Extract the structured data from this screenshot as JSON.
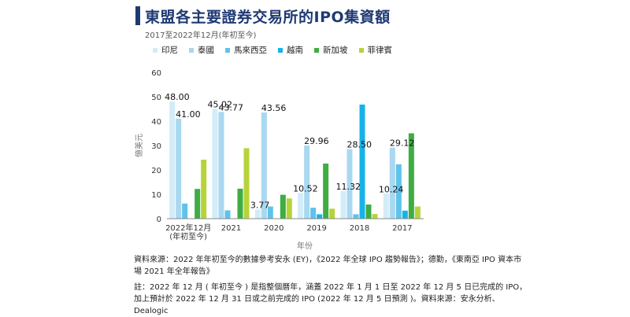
{
  "header": {
    "title": "東盟各主要證券交易所的IPO集資額",
    "subtitle": "2017至2022年12月(年初至今)"
  },
  "colors": {
    "accent": "#1f3a73",
    "series": [
      "#d2ecf8",
      "#a9d8f0",
      "#5ec3ea",
      "#17b3e8",
      "#3ead42",
      "#b6d33a"
    ]
  },
  "chart_data": {
    "type": "bar",
    "ylabel": "億美元",
    "xlabel": "年份",
    "ylim": [
      0,
      60
    ],
    "yticks": [
      0,
      10,
      20,
      30,
      40,
      50,
      60
    ],
    "grid": false,
    "legend_position": "top",
    "categories": [
      [
        "2022年12月",
        "(年初至今)"
      ],
      [
        "2021"
      ],
      [
        "2020"
      ],
      [
        "2019"
      ],
      [
        "2018"
      ],
      [
        "2017"
      ]
    ],
    "series": [
      {
        "name": "印尼",
        "values": [
          48.0,
          45.02,
          3.77,
          10.52,
          11.32,
          10.24
        ]
      },
      {
        "name": "泰國",
        "values": [
          41.0,
          43.77,
          43.56,
          29.96,
          28.5,
          29.12
        ]
      },
      {
        "name": "馬來西亞",
        "values": [
          6.2,
          3.4,
          5.0,
          4.5,
          1.8,
          22.3
        ]
      },
      {
        "name": "越南",
        "values": [
          0,
          0,
          0,
          1.8,
          46.8,
          3.3
        ]
      },
      {
        "name": "新加坡",
        "values": [
          12.2,
          12.3,
          9.8,
          22.6,
          5.8,
          35.0
        ]
      },
      {
        "name": "菲律賓",
        "values": [
          24.2,
          28.9,
          8.3,
          4.1,
          1.9,
          5.0
        ]
      }
    ],
    "data_labels": [
      {
        "category": 0,
        "series": 0,
        "text": "48.00"
      },
      {
        "category": 0,
        "series": 1,
        "text": "41.00"
      },
      {
        "category": 1,
        "series": 0,
        "text": "45.02"
      },
      {
        "category": 1,
        "series": 1,
        "text": "43.77"
      },
      {
        "category": 2,
        "series": 0,
        "text": "3.77"
      },
      {
        "category": 2,
        "series": 1,
        "text": "43.56"
      },
      {
        "category": 3,
        "series": 0,
        "text": "10.52"
      },
      {
        "category": 3,
        "series": 1,
        "text": "29.96"
      },
      {
        "category": 4,
        "series": 0,
        "text": "11.32"
      },
      {
        "category": 4,
        "series": 1,
        "text": "28.50"
      },
      {
        "category": 5,
        "series": 0,
        "text": "10.24"
      },
      {
        "category": 5,
        "series": 1,
        "text": "29.12"
      }
    ]
  },
  "notes": {
    "source": "資料來源：2022 年年初至今的數據參考安永 (EY)，《2022 年全球 IPO 趨勢報告》；德勤，《東南亞 IPO 資本市場 2021 年全年報告》",
    "footnote": "註：2022 年 12 月 ( 年初至今 ) 是指整個曆年，涵蓋 2022 年 1 月 1 日至 2022 年 12 月 5 日已完成的 IPO，加上預計於 2022 年 12 月 31 日或之前完成的 IPO (2022 年 12 月 5 日預測 )。資料來源：安永分析、Dealogic"
  }
}
